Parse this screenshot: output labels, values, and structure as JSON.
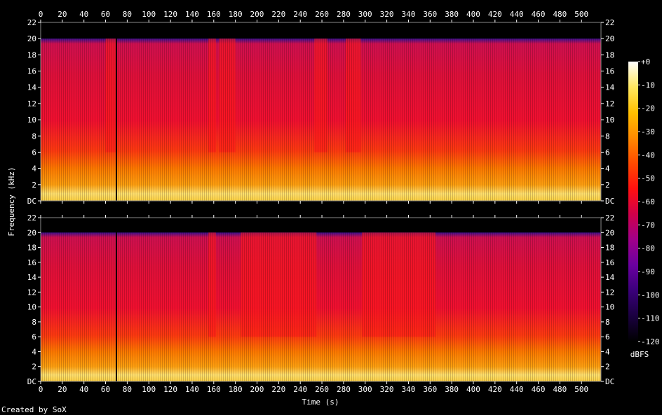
{
  "chart_data": {
    "type": "heatmap",
    "title": "",
    "xlabel": "Time (s)",
    "ylabel": "Frequency (kHz)",
    "xlim": [
      0,
      518
    ],
    "ylim": [
      0,
      22
    ],
    "x_ticks": [
      0,
      20,
      40,
      60,
      80,
      100,
      120,
      140,
      160,
      180,
      200,
      220,
      240,
      260,
      280,
      300,
      320,
      340,
      360,
      380,
      400,
      420,
      440,
      460,
      480,
      500
    ],
    "y_ticks": [
      {
        "value": 0,
        "label": "DC"
      },
      {
        "value": 2,
        "label": "2"
      },
      {
        "value": 4,
        "label": "4"
      },
      {
        "value": 6,
        "label": "6"
      },
      {
        "value": 8,
        "label": "8"
      },
      {
        "value": 10,
        "label": "10"
      },
      {
        "value": 12,
        "label": "12"
      },
      {
        "value": 14,
        "label": "14"
      },
      {
        "value": 16,
        "label": "16"
      },
      {
        "value": 18,
        "label": "18"
      },
      {
        "value": 20,
        "label": "20"
      },
      {
        "value": 22,
        "label": "22"
      }
    ],
    "channels": [
      {
        "id": "channel-1",
        "spectrum_cutoff_khz": 20,
        "silence_at_s": 70,
        "bright_segments_s": [
          [
            60,
            70
          ],
          [
            155,
            162
          ],
          [
            165,
            180
          ],
          [
            253,
            265
          ],
          [
            282,
            296
          ]
        ]
      },
      {
        "id": "channel-2",
        "spectrum_cutoff_khz": 20,
        "silence_at_s": 70,
        "bright_segments_s": [
          [
            155,
            162
          ],
          [
            185,
            255
          ],
          [
            297,
            365
          ]
        ]
      }
    ],
    "colorbar": {
      "label": "dBFS",
      "range": [
        -120,
        0
      ],
      "ticks": [
        "+0",
        "-10",
        "-20",
        "-30",
        "-40",
        "-50",
        "-60",
        "-70",
        "-80",
        "-90",
        "-100",
        "-110",
        "-120"
      ],
      "colors": [
        "#000000",
        "#1a0040",
        "#3a007a",
        "#6a00a0",
        "#a0008a",
        "#d0004a",
        "#ff1010",
        "#ff4a00",
        "#ff8a00",
        "#ffc000",
        "#ffe860",
        "#ffffff"
      ]
    }
  },
  "footer": {
    "credit": "Created by SoX"
  }
}
